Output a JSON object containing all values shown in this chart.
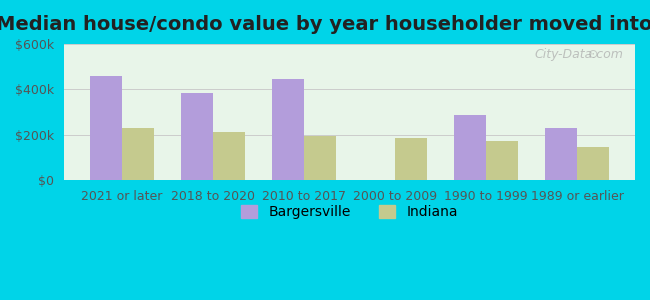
{
  "title": "Median house/condo value by year householder moved into unit",
  "categories": [
    "2021 or later",
    "2018 to 2020",
    "2010 to 2017",
    "2000 to 2009",
    "1990 to 1999",
    "1989 or earlier"
  ],
  "bargersville_values": [
    460000,
    385000,
    445000,
    0,
    285000,
    230000
  ],
  "indiana_values": [
    230000,
    210000,
    195000,
    185000,
    172000,
    148000
  ],
  "bargersville_color": "#b39ddb",
  "indiana_color": "#c5ca8e",
  "background_outer": "#00d4e8",
  "background_chart_top": "#e8f5e9",
  "background_chart_bottom": "#f0f7f0",
  "ylim": [
    0,
    600000
  ],
  "yticks": [
    0,
    200000,
    400000,
    600000
  ],
  "ytick_labels": [
    "$0",
    "$200k",
    "$400k",
    "$600k"
  ],
  "bar_width": 0.35,
  "title_fontsize": 14,
  "tick_fontsize": 9,
  "legend_fontsize": 10,
  "watermark": "City-Data.com"
}
